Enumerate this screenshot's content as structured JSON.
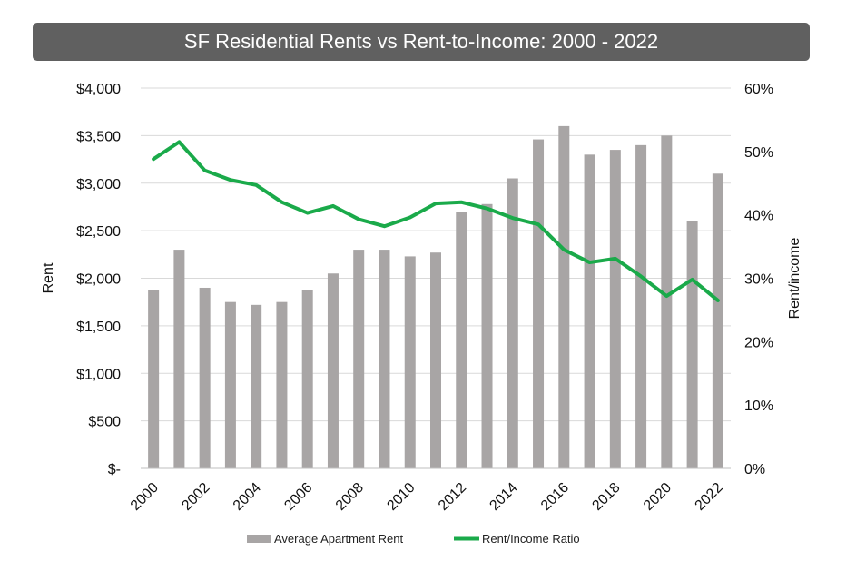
{
  "chart_data": {
    "type": "bar",
    "title": "SF Residential Rents vs Rent-to-Income: 2000 - 2022",
    "ylabel": "Rent",
    "y2label": "Rent/income",
    "ylim": [
      0,
      4000
    ],
    "y2lim": [
      0,
      60
    ],
    "y_ticks": [
      "$-",
      "$500",
      "$1,000",
      "$1,500",
      "$2,000",
      "$2,500",
      "$3,000",
      "$3,500",
      "$4,000"
    ],
    "y2_ticks": [
      "0%",
      "10%",
      "20%",
      "30%",
      "40%",
      "50%",
      "60%"
    ],
    "x_tick_labels": [
      "2000",
      "2002",
      "2004",
      "2006",
      "2008",
      "2010",
      "2012",
      "2014",
      "2016",
      "2018",
      "2020",
      "2022"
    ],
    "categories": [
      "2000",
      "2001",
      "2002",
      "2003",
      "2004",
      "2005",
      "2006",
      "2007",
      "2008",
      "2009",
      "2010",
      "2011",
      "2012",
      "2013",
      "2014",
      "2015",
      "2016",
      "2017",
      "2018",
      "2019",
      "2020",
      "2021",
      "2022"
    ],
    "series": [
      {
        "name": "Average Apartment Rent",
        "type": "bar",
        "axis": "left",
        "color": "#a8a5a5",
        "values": [
          1880,
          2300,
          1900,
          1750,
          1720,
          1750,
          1880,
          2050,
          2300,
          2300,
          2230,
          2270,
          2700,
          2780,
          3050,
          3460,
          3600,
          3300,
          3350,
          3400,
          3500,
          2600,
          3100
        ]
      },
      {
        "name": "Rent/Income Ratio",
        "type": "line",
        "axis": "right",
        "color": "#1aaa4a",
        "values": [
          48.8,
          51.5,
          47.0,
          45.5,
          44.7,
          42.0,
          40.3,
          41.4,
          39.3,
          38.2,
          39.6,
          41.8,
          42.0,
          41.0,
          39.5,
          38.5,
          34.5,
          32.5,
          33.1,
          30.3,
          27.2,
          29.8,
          26.5
        ]
      }
    ],
    "grid": true,
    "legend_position": "bottom"
  }
}
